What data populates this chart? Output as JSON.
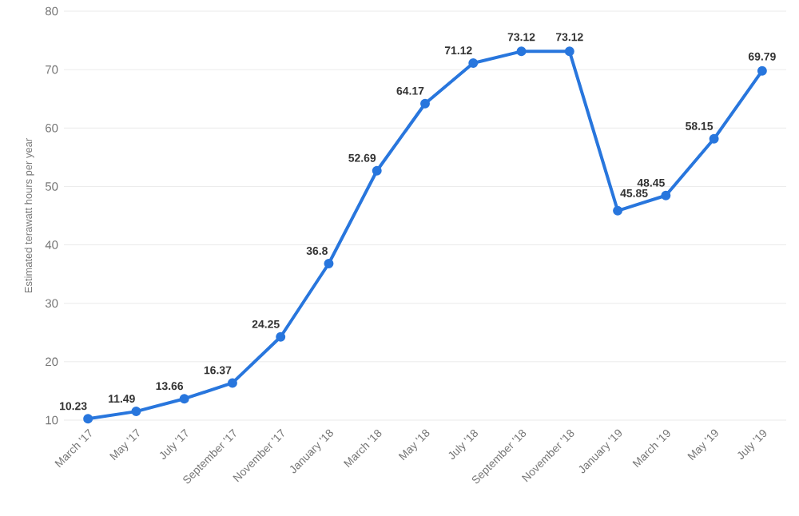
{
  "chart_data": {
    "type": "line",
    "ylabel": "Estimated terawatt hours per year",
    "categories": [
      "March '17",
      "May '17",
      "July '17",
      "September '17",
      "November '17",
      "January '18",
      "March '18",
      "May '18",
      "July '18",
      "September '18",
      "November '18",
      "January '19",
      "March '19",
      "May '19",
      "July '19"
    ],
    "values": [
      10.23,
      11.49,
      13.66,
      16.37,
      24.25,
      36.8,
      52.69,
      64.17,
      71.12,
      73.12,
      73.12,
      45.85,
      48.45,
      58.15,
      69.79
    ],
    "color": "#2876dd",
    "ylim": [
      10,
      80
    ],
    "yticks": [
      10,
      20,
      30,
      40,
      50,
      60,
      70,
      80
    ],
    "grid": "y",
    "marker": "circle",
    "line_style": "solid",
    "data_labels": true
  }
}
